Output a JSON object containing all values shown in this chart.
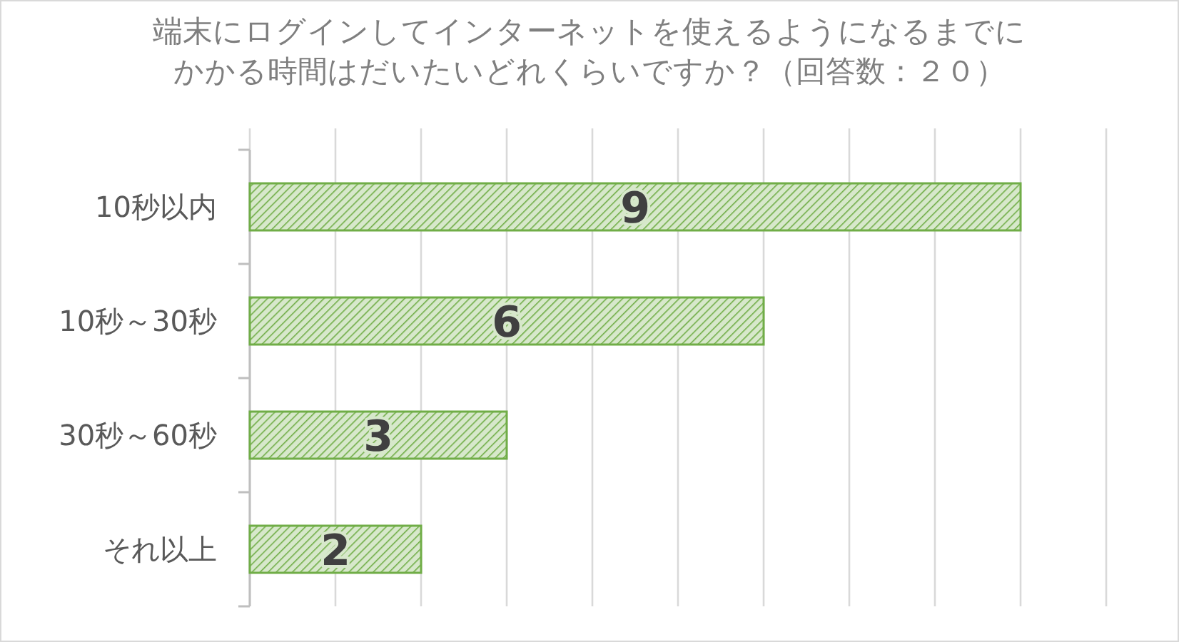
{
  "chart_data": {
    "type": "bar",
    "orientation": "horizontal",
    "title": "端末にログインしてインターネットを使えるようになるまでにかかる時間はだいたいどれくらいですか？（回答数：２０）",
    "categories": [
      "10秒以内",
      "10秒～30秒",
      "30秒～60秒",
      "それ以上"
    ],
    "values": [
      9,
      6,
      3,
      2
    ],
    "color": "#70ad47",
    "data_labels": true,
    "xlim": [
      0,
      10
    ],
    "xticks": [
      {
        "value": 0,
        "label": null
      },
      {
        "value": 1,
        "label": null
      },
      {
        "value": 2,
        "label": null
      },
      {
        "value": 3,
        "label": null
      },
      {
        "value": 4,
        "label": null
      },
      {
        "value": 5,
        "label": null
      },
      {
        "value": 6,
        "label": null
      },
      {
        "value": 7,
        "label": null
      },
      {
        "value": 8,
        "label": null
      },
      {
        "value": 9,
        "label": null
      },
      {
        "value": 10,
        "label": null
      }
    ],
    "grid": "x"
  }
}
